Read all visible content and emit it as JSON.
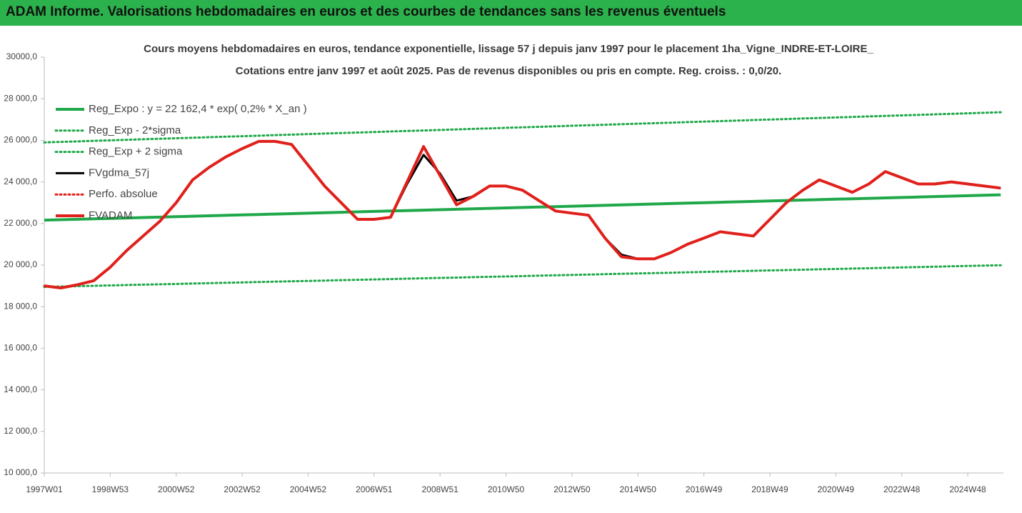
{
  "header": {
    "title": "ADAM Informe. Valorisations hebdomadaires en euros et des courbes de tendances sans les revenus éventuels"
  },
  "chart_data": {
    "type": "line",
    "title": "Cours moyens hebdomadaires en euros, tendance exponentielle, lissage 57 j depuis janv 1997 pour le placement 1ha_Vigne_INDRE-ET-LOIRE_",
    "subtitle": "Cotations entre janv 1997 et août 2025.  Pas de revenus disponibles ou pris en compte. Reg. croiss. : 0,0/20.",
    "categories": [
      "1997W01",
      null,
      null,
      null,
      "1998W53",
      null,
      null,
      null,
      "2000W52",
      null,
      null,
      null,
      "2002W52",
      null,
      null,
      null,
      "2004W52",
      null,
      null,
      null,
      "2006W51",
      null,
      null,
      null,
      "2008W51",
      null,
      null,
      null,
      "2010W50",
      null,
      null,
      null,
      "2012W50",
      null,
      null,
      null,
      "2014W50",
      null,
      null,
      null,
      "2016W49",
      null,
      null,
      null,
      "2018W49",
      null,
      null,
      null,
      "2020W49",
      null,
      null,
      null,
      "2022W48",
      null,
      null,
      null,
      "2024W48",
      null,
      null
    ],
    "ylim": [
      10000,
      30000
    ],
    "yticks": [
      {
        "value": 10000,
        "label": "10 000,0"
      },
      {
        "value": 12000,
        "label": "12 000,0"
      },
      {
        "value": 14000,
        "label": "14 000,0"
      },
      {
        "value": 16000,
        "label": "16 000,0"
      },
      {
        "value": 18000,
        "label": "18 000,0"
      },
      {
        "value": 20000,
        "label": "20 000,0"
      },
      {
        "value": 22000,
        "label": "22 000,0"
      },
      {
        "value": 24000,
        "label": "24 000,0"
      },
      {
        "value": 26000,
        "label": "26 000,0"
      },
      {
        "value": 28000,
        "label": "28 000,0"
      },
      {
        "value": 30000,
        "label": "30000,0"
      }
    ],
    "grid": false,
    "series": [
      {
        "name": "Reg_Expo : y = 22 162,4 * exp( 0,2% *  X_an )",
        "color": "#1fa84a",
        "style": "solid",
        "width": 4,
        "values": [
          22160,
          22181,
          22202,
          22223,
          22244,
          22265,
          22286,
          22307,
          22328,
          22349,
          22370,
          22391,
          22412,
          22433,
          22454,
          22475,
          22496,
          22517,
          22538,
          22559,
          22580,
          22601,
          22622,
          22643,
          22664,
          22685,
          22706,
          22727,
          22748,
          22769,
          22790,
          22811,
          22832,
          22853,
          22874,
          22895,
          22916,
          22937,
          22958,
          22979,
          23000,
          23021,
          23042,
          23063,
          23084,
          23105,
          23126,
          23147,
          23168,
          23189,
          23210,
          23231,
          23252,
          23273,
          23294,
          23315,
          23336,
          23357,
          23378
        ]
      },
      {
        "name": "Reg_Exp - 2*sigma",
        "color": "#1fa84a",
        "style": "dotted",
        "width": 3,
        "values": [
          18950,
          18968,
          18986,
          19004,
          19022,
          19040,
          19058,
          19076,
          19094,
          19112,
          19130,
          19148,
          19166,
          19184,
          19202,
          19220,
          19238,
          19256,
          19274,
          19292,
          19310,
          19328,
          19346,
          19364,
          19382,
          19400,
          19418,
          19436,
          19454,
          19472,
          19490,
          19508,
          19526,
          19544,
          19562,
          19580,
          19598,
          19616,
          19634,
          19652,
          19670,
          19688,
          19706,
          19724,
          19742,
          19760,
          19778,
          19796,
          19814,
          19832,
          19850,
          19868,
          19886,
          19904,
          19922,
          19940,
          19958,
          19976,
          19994
        ]
      },
      {
        "name": "Reg_Exp + 2 sigma",
        "color": "#1fa84a",
        "style": "dotted",
        "width": 3,
        "values": [
          25900,
          25925,
          25950,
          25975,
          26000,
          26025,
          26050,
          26075,
          26100,
          26125,
          26150,
          26175,
          26200,
          26225,
          26250,
          26275,
          26300,
          26325,
          26350,
          26375,
          26400,
          26425,
          26450,
          26475,
          26500,
          26525,
          26550,
          26575,
          26600,
          26625,
          26650,
          26675,
          26700,
          26725,
          26750,
          26775,
          26800,
          26825,
          26850,
          26875,
          26900,
          26925,
          26950,
          26975,
          27000,
          27025,
          27050,
          27075,
          27100,
          27125,
          27150,
          27175,
          27200,
          27225,
          27250,
          27275,
          27300,
          27325,
          27350
        ]
      },
      {
        "name": "FVgdma_57j",
        "color": "#000000",
        "style": "solid",
        "width": 3,
        "values": [
          19000,
          18900,
          19050,
          19250,
          19900,
          20700,
          21400,
          22100,
          23000,
          24100,
          24700,
          25200,
          25600,
          25950,
          25950,
          25800,
          24800,
          23800,
          23000,
          22200,
          22200,
          22300,
          23900,
          25300,
          24400,
          23100,
          23300,
          23800,
          23800,
          23600,
          23100,
          22600,
          22500,
          22400,
          21300,
          20500,
          20300,
          20300,
          20600,
          21000,
          21300,
          21600,
          21500,
          21400,
          22200,
          23000,
          23600,
          24100,
          23800,
          23500,
          23900,
          24500,
          24200,
          23900,
          23900,
          24000,
          23900,
          23800,
          23700
        ]
      },
      {
        "name": "Perfo. absolue",
        "color": "#e0201b",
        "style": "dotted",
        "width": 3,
        "values": [
          19000,
          18900,
          19050,
          19250,
          19900,
          20700,
          21400,
          22100,
          23000,
          24100,
          24700,
          25200,
          25600,
          25950,
          25950,
          25800,
          24800,
          23800,
          23000,
          22200,
          22200,
          22300,
          24000,
          25700,
          24300,
          22900,
          23300,
          23800,
          23800,
          23600,
          23100,
          22600,
          22500,
          22400,
          21300,
          20400,
          20300,
          20300,
          20600,
          21000,
          21300,
          21600,
          21500,
          21400,
          22200,
          23000,
          23600,
          24100,
          23800,
          23500,
          23900,
          24500,
          24200,
          23900,
          23900,
          24000,
          23900,
          23800,
          23700
        ]
      },
      {
        "name": "FVADAM",
        "color": "#e0201b",
        "style": "solid",
        "width": 4,
        "values": [
          19000,
          18900,
          19050,
          19250,
          19900,
          20700,
          21400,
          22100,
          23000,
          24100,
          24700,
          25200,
          25600,
          25950,
          25950,
          25800,
          24800,
          23800,
          23000,
          22200,
          22200,
          22300,
          24000,
          25700,
          24300,
          22900,
          23300,
          23800,
          23800,
          23600,
          23100,
          22600,
          22500,
          22400,
          21300,
          20400,
          20300,
          20300,
          20600,
          21000,
          21300,
          21600,
          21500,
          21400,
          22200,
          23000,
          23600,
          24100,
          23800,
          23500,
          23900,
          24500,
          24200,
          23900,
          23900,
          24000,
          23900,
          23800,
          23700
        ]
      }
    ]
  }
}
